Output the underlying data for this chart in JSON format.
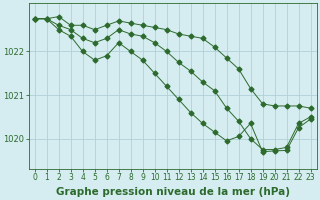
{
  "background_color": "#d5edf0",
  "grid_color": "#b0d0d8",
  "line_color": "#2d6a2d",
  "spine_color": "#2d6a2d",
  "title": "Graphe pression niveau de la mer (hPa)",
  "xlim": [
    -0.5,
    23.5
  ],
  "ylim": [
    1019.3,
    1023.1
  ],
  "yticks": [
    1020,
    1021,
    1022
  ],
  "xticks": [
    0,
    1,
    2,
    3,
    4,
    5,
    6,
    7,
    8,
    9,
    10,
    11,
    12,
    13,
    14,
    15,
    16,
    17,
    18,
    19,
    20,
    21,
    22,
    23
  ],
  "series": [
    {
      "x": [
        0,
        1,
        2,
        3,
        4,
        5,
        6,
        7,
        8,
        9,
        10,
        11,
        12,
        13,
        14,
        15,
        16,
        17,
        18,
        19,
        20,
        21,
        22,
        23
      ],
      "y": [
        1022.75,
        1022.75,
        1022.8,
        1022.6,
        1022.6,
        1022.5,
        1022.6,
        1022.7,
        1022.65,
        1022.6,
        1022.55,
        1022.5,
        1022.4,
        1022.35,
        1022.3,
        1022.1,
        1021.85,
        1021.6,
        1021.15,
        1020.8,
        1020.75,
        1020.75,
        1020.75,
        1020.7
      ],
      "marker": "D",
      "markersize": 2.5
    },
    {
      "x": [
        0,
        1,
        2,
        3,
        4,
        5,
        6,
        7,
        8,
        9,
        10,
        11,
        12,
        13,
        14,
        15,
        16,
        17,
        18,
        19,
        20,
        21,
        22,
        23
      ],
      "y": [
        1022.75,
        1022.75,
        1022.6,
        1022.5,
        1022.3,
        1022.2,
        1022.3,
        1022.5,
        1022.4,
        1022.35,
        1022.2,
        1022.0,
        1021.75,
        1021.55,
        1021.3,
        1021.1,
        1020.7,
        1020.4,
        1020.0,
        1019.75,
        1019.75,
        1019.8,
        1020.35,
        1020.5
      ],
      "marker": "D",
      "markersize": 2.5
    },
    {
      "x": [
        0,
        1,
        2,
        3,
        4,
        5,
        6,
        7,
        8,
        9,
        10,
        11,
        12,
        13,
        14,
        15,
        16,
        17,
        18,
        19,
        20,
        21,
        22,
        23
      ],
      "y": [
        1022.75,
        1022.75,
        1022.5,
        1022.35,
        1022.0,
        1021.8,
        1021.9,
        1022.2,
        1022.0,
        1021.8,
        1021.5,
        1021.2,
        1020.9,
        1020.6,
        1020.35,
        1020.15,
        1019.95,
        1020.05,
        1020.35,
        1019.7,
        1019.72,
        1019.73,
        1020.25,
        1020.45
      ],
      "marker": "D",
      "markersize": 2.5
    }
  ],
  "title_fontsize": 7.5,
  "tick_fontsize": 5.5,
  "title_fontweight": "bold"
}
